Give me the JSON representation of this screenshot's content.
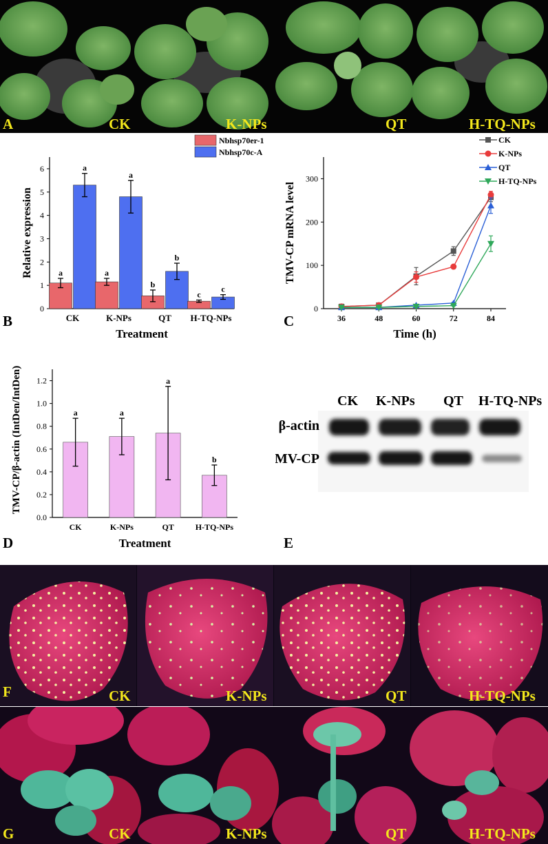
{
  "panel_a": {
    "letter": "A",
    "labels": [
      "CK",
      "K-NPs",
      "QT",
      "H-TQ-NPs"
    ]
  },
  "panel_b": {
    "letter": "B",
    "chart_data": {
      "type": "bar",
      "ylabel": "Relative expression",
      "xlabel": "Treatment",
      "categories": [
        "CK",
        "K-NPs",
        "QT",
        "H-TQ-NPs"
      ],
      "ylim": [
        0,
        6.5
      ],
      "yticks": [
        "0",
        "1",
        "2",
        "3",
        "4",
        "5",
        "6"
      ],
      "series": [
        {
          "name": "Nbhsp70er-1",
          "color": "#e8676b",
          "values": [
            1.1,
            1.15,
            0.55,
            0.32
          ],
          "errors": [
            0.2,
            0.15,
            0.25,
            0.05
          ],
          "letters": [
            "a",
            "a",
            "b",
            "c"
          ]
        },
        {
          "name": "Nbhsp70c-A",
          "color": "#4e6ff0",
          "values": [
            5.3,
            4.8,
            1.6,
            0.5
          ],
          "errors": [
            0.5,
            0.7,
            0.35,
            0.1
          ],
          "letters": [
            "a",
            "a",
            "b",
            "c"
          ]
        }
      ]
    }
  },
  "panel_c": {
    "letter": "C",
    "chart_data": {
      "type": "line",
      "ylabel": "TMV-CP mRNA level",
      "xlabel": "Time (h)",
      "x": [
        36,
        48,
        60,
        72,
        84
      ],
      "xticks": [
        "36",
        "48",
        "60",
        "72",
        "84"
      ],
      "yticks": [
        "0",
        "100",
        "200",
        "300"
      ],
      "ylim": [
        0,
        350
      ],
      "series": [
        {
          "name": "CK",
          "color": "#555555",
          "marker": "square",
          "values": [
            5,
            8,
            75,
            133,
            257
          ],
          "errors": [
            2,
            3,
            20,
            10,
            10
          ]
        },
        {
          "name": "K-NPs",
          "color": "#e83b3b",
          "marker": "circle",
          "values": [
            5,
            8,
            73,
            97,
            263
          ],
          "errors": [
            2,
            2,
            12,
            4,
            8
          ]
        },
        {
          "name": "QT",
          "color": "#2a5fd6",
          "marker": "triangle-up",
          "values": [
            3,
            3,
            8,
            13,
            238
          ],
          "errors": [
            1,
            1,
            2,
            2,
            18
          ]
        },
        {
          "name": "H-TQ-NPs",
          "color": "#2fa85a",
          "marker": "triangle-down",
          "values": [
            3,
            3,
            5,
            7,
            150
          ],
          "errors": [
            1,
            1,
            1,
            1,
            18
          ]
        }
      ]
    }
  },
  "panel_d": {
    "letter": "D",
    "chart_data": {
      "type": "bar",
      "ylabel": "TMV-CP/β-actin (IntDen/IntDen)",
      "xlabel": "Treatment",
      "categories": [
        "CK",
        "K-NPs",
        "QT",
        "H-TQ-NPs"
      ],
      "values": [
        0.66,
        0.71,
        0.74,
        0.37
      ],
      "errors": [
        0.21,
        0.16,
        0.41,
        0.09
      ],
      "letters": [
        "a",
        "a",
        "a",
        "b"
      ],
      "ylim": [
        0,
        1.3
      ],
      "yticks": [
        "0.0",
        "0.2",
        "0.4",
        "0.6",
        "0.8",
        "1.0",
        "1.2"
      ],
      "color": "#f1b6f1"
    }
  },
  "panel_e": {
    "letter": "E",
    "lanes": [
      "CK",
      "K-NPs",
      "QT",
      "H-TQ-NPs"
    ],
    "rows": [
      "β-actin",
      "TMV-CP"
    ]
  },
  "panel_f": {
    "letter": "F",
    "labels": [
      "CK",
      "K-NPs",
      "QT",
      "H-TQ-NPs"
    ]
  },
  "panel_g": {
    "letter": "G",
    "labels": [
      "CK",
      "K-NPs",
      "QT",
      "H-TQ-NPs"
    ]
  }
}
